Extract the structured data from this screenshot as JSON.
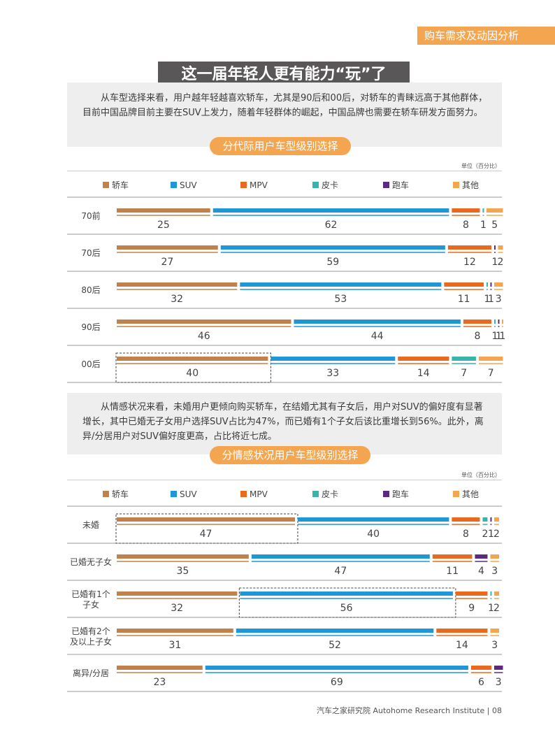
{
  "header": {
    "section_tag": "购车需求及动因分析"
  },
  "main_title": "这一届年轻人更有能力“玩”了",
  "intro1": "从车型选择来看，用户越年轻越喜欢轿车，尤其是90后和00后，对轿车的青睐远高于其他群体，目前中国品牌目前主要在SUV上发力，随着年轻群体的崛起，中国品牌也需要在轿车研发方面努力。",
  "intro2": "从情感状况来看，未婚用户更倾向购买轿车，在结婚尤其有子女后，用户对SUV的偏好度有显著增长，其中已婚无子女用户选择SUV占比为47%，而已婚有1个子女后该比重增长到56%。此外，离异/分居用户对SUV偏好度更高，占比将近七成。",
  "footer": "汽车之家研究院  Autohome Research Institute  |  08",
  "colors": {
    "sedan": "#c1814a",
    "suv": "#1e96d8",
    "mpv": "#e96a1e",
    "pickup": "#39b4ad",
    "sports": "#5a2a80",
    "other": "#f3a64f"
  },
  "chart_data": [
    {
      "type": "bar",
      "stacked": true,
      "title": "分代际用户车型级别选择",
      "unit": "单位（百分比）",
      "legend_position": "top",
      "categories": [
        "70前",
        "70后",
        "80后",
        "90后",
        "00后"
      ],
      "series": [
        {
          "name": "轿车",
          "color_key": "sedan",
          "values": [
            25,
            27,
            32,
            46,
            40
          ]
        },
        {
          "name": "SUV",
          "color_key": "suv",
          "values": [
            62,
            59,
            53,
            44,
            33
          ]
        },
        {
          "name": "MPV",
          "color_key": "mpv",
          "values": [
            8,
            12,
            11,
            8,
            14
          ]
        },
        {
          "name": "皮卡",
          "color_key": "pickup",
          "values": [
            1,
            0,
            1,
            1,
            7
          ]
        },
        {
          "name": "跑车",
          "color_key": "sports",
          "values": [
            0,
            1,
            1,
            1,
            0
          ]
        },
        {
          "name": "其他",
          "color_key": "other",
          "values": [
            5,
            2,
            3,
            1,
            7
          ]
        }
      ],
      "highlights": [
        {
          "category": "00后",
          "series": "轿车"
        }
      ]
    },
    {
      "type": "bar",
      "stacked": true,
      "title": "分情感状况用户车型级别选择",
      "unit": "单位（百分比）",
      "legend_position": "top",
      "categories": [
        "未婚",
        "已婚无子女",
        "已婚有1个\n子女",
        "已婚有2个\n及以上子女",
        "离异/分居"
      ],
      "series": [
        {
          "name": "轿车",
          "color_key": "sedan",
          "values": [
            47,
            35,
            32,
            31,
            23
          ]
        },
        {
          "name": "SUV",
          "color_key": "suv",
          "values": [
            40,
            47,
            56,
            52,
            69
          ]
        },
        {
          "name": "MPV",
          "color_key": "mpv",
          "values": [
            8,
            11,
            9,
            14,
            6
          ]
        },
        {
          "name": "皮卡",
          "color_key": "pickup",
          "values": [
            2,
            0,
            1,
            0,
            0
          ]
        },
        {
          "name": "跑车",
          "color_key": "sports",
          "values": [
            1,
            4,
            0,
            0,
            3
          ]
        },
        {
          "name": "其他",
          "color_key": "other",
          "values": [
            2,
            3,
            2,
            3,
            0
          ]
        }
      ],
      "highlights": [
        {
          "category": "未婚",
          "series": "轿车"
        },
        {
          "category": "已婚有1个\n子女",
          "series": "SUV"
        }
      ]
    }
  ]
}
